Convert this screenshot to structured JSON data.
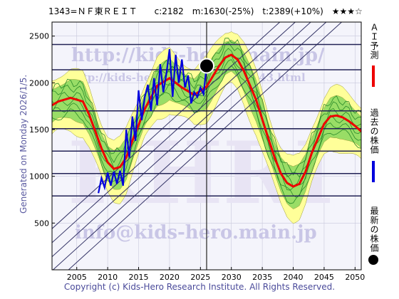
{
  "header": {
    "text": "1343=ＮＦ東ＲＥＩＴ　　c:2182　m:1630(-25%)　t:2389(+10%)　★★★☆"
  },
  "side_label": "Generated on Monday 2026/1/5.",
  "footer": "Copyright (c) Kids-Hero Research Institute. All Rights Reserved.",
  "watermarks": {
    "url1": "http://kids-hero.main.jp/",
    "url2": "http://kids-hero.main.jp/code1343.html",
    "email": "info@kids-hero.main.jp",
    "big": "KHRI"
  },
  "legend": {
    "ai_forecast": "ＡＩ予測",
    "past_price": "過去の株価",
    "latest_price": "最新の株価"
  },
  "colors": {
    "ai": "#ee0000",
    "past": "#0000dd",
    "latest": "#000000",
    "band_light": "#ffff99",
    "band_green": "#66cc44",
    "grid": "#222255"
  },
  "chart_data": {
    "type": "line",
    "xlim": [
      2001,
      2051
    ],
    "ylim": [
      0,
      2650
    ],
    "x_ticks": [
      2005,
      2010,
      2015,
      2020,
      2025,
      2030,
      2035,
      2040,
      2045,
      2050
    ],
    "y_ticks": [
      500,
      1000,
      1500,
      2000,
      2500
    ],
    "hlines": [
      790,
      1030,
      1270,
      1510,
      1700,
      2140,
      2410
    ],
    "vline_x": 2026,
    "current": {
      "x": 2026.0,
      "y": 2182
    },
    "series": [
      {
        "name": "ＡＩ予測",
        "x": [
          2001,
          2002,
          2004,
          2006,
          2007,
          2008,
          2009,
          2010,
          2011,
          2012,
          2013,
          2014,
          2016,
          2018,
          2020,
          2022,
          2024,
          2026,
          2028,
          2029,
          2030,
          2031,
          2032,
          2034,
          2036,
          2037,
          2038,
          2039,
          2040,
          2041,
          2042,
          2043,
          2045,
          2046,
          2047,
          2048,
          2049,
          2050,
          2051
        ],
        "values": [
          1760,
          1800,
          1840,
          1800,
          1660,
          1480,
          1300,
          1150,
          1080,
          1100,
          1200,
          1380,
          1720,
          1970,
          2050,
          1950,
          1870,
          1960,
          2180,
          2270,
          2300,
          2250,
          2130,
          1820,
          1400,
          1200,
          1030,
          930,
          890,
          920,
          1050,
          1250,
          1560,
          1640,
          1650,
          1630,
          1590,
          1540,
          1480
        ]
      },
      {
        "name": "過去の株価",
        "x": [
          2008.5,
          2009,
          2009.5,
          2010,
          2010.5,
          2011,
          2011.5,
          2012,
          2012.5,
          2013,
          2013.5,
          2014,
          2014.5,
          2015,
          2015.5,
          2016,
          2016.5,
          2017,
          2017.5,
          2018,
          2018.5,
          2019,
          2019.5,
          2020,
          2020.5,
          2021,
          2021.5,
          2022,
          2022.5,
          2023,
          2023.5,
          2024,
          2024.5,
          2025,
          2025.5,
          2026
        ],
        "values": [
          820,
          980,
          880,
          1040,
          900,
          1050,
          920,
          1060,
          900,
          1500,
          1200,
          1640,
          1380,
          1920,
          1600,
          1850,
          1980,
          1700,
          2050,
          1760,
          2200,
          1900,
          2100,
          2360,
          1850,
          2300,
          2000,
          2250,
          1950,
          2080,
          1780,
          1900,
          1850,
          1950,
          1880,
          2182
        ]
      }
    ]
  }
}
